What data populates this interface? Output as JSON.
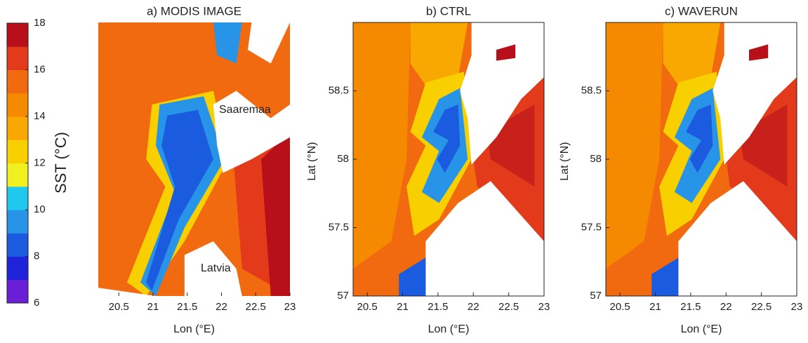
{
  "colorbar": {
    "label": "SST (°C)",
    "lim": [
      6,
      18
    ],
    "ticks": [
      6,
      8,
      10,
      12,
      14,
      16,
      18
    ],
    "colors": [
      "#6a1fd6",
      "#1e22d8",
      "#1a5be0",
      "#2894e8",
      "#20c8ee",
      "#f0f020",
      "#f8d000",
      "#f8a800",
      "#f58a00",
      "#f26a10",
      "#e23a1a",
      "#b8101a"
    ]
  },
  "chart_data": [
    {
      "type": "map",
      "title": "a) MODIS IMAGE",
      "x_label": "Lon (°E)",
      "xlim": [
        20.2,
        23
      ],
      "xticks": [
        20.5,
        21,
        21.5,
        22,
        22.5,
        23
      ],
      "ylim": [
        57,
        59
      ],
      "annotations": [
        "Saaremaa",
        "Latvia"
      ]
    },
    {
      "type": "map",
      "title": "b) CTRL",
      "x_label": "Lon (°E)",
      "y_label": "Lat (°N)",
      "xlim": [
        20.3,
        23
      ],
      "xticks": [
        20.5,
        21,
        21.5,
        22,
        22.5,
        23
      ],
      "ylim": [
        57,
        59
      ],
      "yticks": [
        57,
        57.5,
        58,
        58.5
      ]
    },
    {
      "type": "map",
      "title": "c) WAVERUN",
      "x_label": "Lon (°E)",
      "y_label": "Lat (°N)",
      "xlim": [
        20.3,
        23
      ],
      "xticks": [
        20.5,
        21,
        21.5,
        22,
        22.5,
        23
      ],
      "ylim": [
        57,
        59
      ],
      "yticks": [
        57,
        57.5,
        58,
        58.5
      ]
    }
  ]
}
